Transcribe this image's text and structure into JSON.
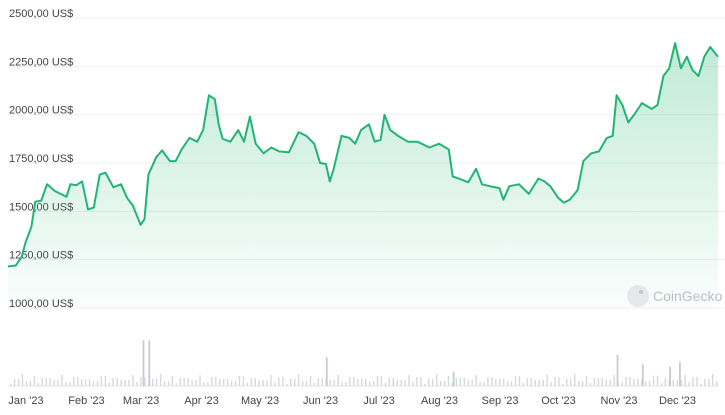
{
  "chart_data": {
    "type": "area",
    "title": "",
    "xlabel": "",
    "ylabel": "",
    "ylim": [
      1000,
      2500
    ],
    "x_range": [
      "2023-01-01",
      "2023-12-31"
    ],
    "y_ticks": [
      {
        "value": 2500,
        "label": "2500,00 US$"
      },
      {
        "value": 2250,
        "label": "2250,00 US$"
      },
      {
        "value": 2000,
        "label": "2000,00 US$"
      },
      {
        "value": 1750,
        "label": "1750,00 US$"
      },
      {
        "value": 1500,
        "label": "1500,00 US$"
      },
      {
        "value": 1250,
        "label": "1250,00 US$"
      },
      {
        "value": 1000,
        "label": "1000,00 US$"
      }
    ],
    "x_ticks": [
      {
        "date": "2023-01-01",
        "label": "Jan '23"
      },
      {
        "date": "2023-02-01",
        "label": "Feb '23"
      },
      {
        "date": "2023-03-01",
        "label": "Mar '23"
      },
      {
        "date": "2023-04-01",
        "label": "Apr '23"
      },
      {
        "date": "2023-05-01",
        "label": "May '23"
      },
      {
        "date": "2023-06-01",
        "label": "Jun '23"
      },
      {
        "date": "2023-07-01",
        "label": "Jul '23"
      },
      {
        "date": "2023-08-01",
        "label": "Aug '23"
      },
      {
        "date": "2023-09-01",
        "label": "Sep '23"
      },
      {
        "date": "2023-10-01",
        "label": "Oct '23"
      },
      {
        "date": "2023-11-01",
        "label": "Nov '23"
      },
      {
        "date": "2023-12-01",
        "label": "Dec '23"
      }
    ],
    "grid": true,
    "colors": {
      "line": "#21b573",
      "fill": "#21b573",
      "volume": "#d4d8df",
      "grid": "#eef0f3"
    },
    "series": [
      {
        "values": [
          [
            "2023-01-01",
            1215
          ],
          [
            "2023-01-05",
            1220
          ],
          [
            "2023-01-08",
            1265
          ],
          [
            "2023-01-10",
            1340
          ],
          [
            "2023-01-13",
            1420
          ],
          [
            "2023-01-15",
            1550
          ],
          [
            "2023-01-18",
            1555
          ],
          [
            "2023-01-21",
            1640
          ],
          [
            "2023-01-25",
            1605
          ],
          [
            "2023-01-28",
            1590
          ],
          [
            "2023-01-31",
            1575
          ],
          [
            "2023-02-02",
            1640
          ],
          [
            "2023-02-05",
            1635
          ],
          [
            "2023-02-08",
            1655
          ],
          [
            "2023-02-11",
            1510
          ],
          [
            "2023-02-14",
            1520
          ],
          [
            "2023-02-17",
            1690
          ],
          [
            "2023-02-20",
            1700
          ],
          [
            "2023-02-24",
            1625
          ],
          [
            "2023-02-28",
            1640
          ],
          [
            "2023-03-03",
            1570
          ],
          [
            "2023-03-06",
            1530
          ],
          [
            "2023-03-10",
            1430
          ],
          [
            "2023-03-12",
            1460
          ],
          [
            "2023-03-14",
            1690
          ],
          [
            "2023-03-18",
            1780
          ],
          [
            "2023-03-21",
            1815
          ],
          [
            "2023-03-25",
            1760
          ],
          [
            "2023-03-28",
            1760
          ],
          [
            "2023-03-31",
            1820
          ],
          [
            "2023-04-04",
            1880
          ],
          [
            "2023-04-08",
            1860
          ],
          [
            "2023-04-11",
            1920
          ],
          [
            "2023-04-14",
            2100
          ],
          [
            "2023-04-17",
            2080
          ],
          [
            "2023-04-19",
            1950
          ],
          [
            "2023-04-21",
            1875
          ],
          [
            "2023-04-25",
            1860
          ],
          [
            "2023-04-29",
            1920
          ],
          [
            "2023-05-02",
            1860
          ],
          [
            "2023-05-05",
            1990
          ],
          [
            "2023-05-08",
            1850
          ],
          [
            "2023-05-12",
            1800
          ],
          [
            "2023-05-16",
            1830
          ],
          [
            "2023-05-20",
            1810
          ],
          [
            "2023-05-25",
            1805
          ],
          [
            "2023-05-30",
            1910
          ],
          [
            "2023-06-03",
            1890
          ],
          [
            "2023-06-07",
            1850
          ],
          [
            "2023-06-10",
            1750
          ],
          [
            "2023-06-13",
            1745
          ],
          [
            "2023-06-15",
            1655
          ],
          [
            "2023-06-17",
            1720
          ],
          [
            "2023-06-21",
            1890
          ],
          [
            "2023-06-25",
            1880
          ],
          [
            "2023-06-28",
            1850
          ],
          [
            "2023-07-01",
            1920
          ],
          [
            "2023-07-05",
            1950
          ],
          [
            "2023-07-08",
            1860
          ],
          [
            "2023-07-11",
            1870
          ],
          [
            "2023-07-13",
            2000
          ],
          [
            "2023-07-16",
            1920
          ],
          [
            "2023-07-20",
            1890
          ],
          [
            "2023-07-25",
            1860
          ],
          [
            "2023-07-30",
            1860
          ],
          [
            "2023-08-05",
            1830
          ],
          [
            "2023-08-10",
            1850
          ],
          [
            "2023-08-15",
            1820
          ],
          [
            "2023-08-17",
            1680
          ],
          [
            "2023-08-20",
            1670
          ],
          [
            "2023-08-25",
            1650
          ],
          [
            "2023-08-29",
            1720
          ],
          [
            "2023-09-01",
            1640
          ],
          [
            "2023-09-05",
            1630
          ],
          [
            "2023-09-10",
            1620
          ],
          [
            "2023-09-12",
            1560
          ],
          [
            "2023-09-15",
            1630
          ],
          [
            "2023-09-20",
            1640
          ],
          [
            "2023-09-25",
            1590
          ],
          [
            "2023-09-30",
            1670
          ],
          [
            "2023-10-03",
            1655
          ],
          [
            "2023-10-06",
            1630
          ],
          [
            "2023-10-10",
            1570
          ],
          [
            "2023-10-13",
            1545
          ],
          [
            "2023-10-16",
            1560
          ],
          [
            "2023-10-20",
            1610
          ],
          [
            "2023-10-23",
            1760
          ],
          [
            "2023-10-27",
            1800
          ],
          [
            "2023-10-31",
            1810
          ],
          [
            "2023-11-04",
            1880
          ],
          [
            "2023-11-07",
            1890
          ],
          [
            "2023-11-09",
            2100
          ],
          [
            "2023-11-12",
            2050
          ],
          [
            "2023-11-15",
            1960
          ],
          [
            "2023-11-18",
            2000
          ],
          [
            "2023-11-22",
            2060
          ],
          [
            "2023-11-27",
            2030
          ],
          [
            "2023-11-30",
            2050
          ],
          [
            "2023-12-03",
            2200
          ],
          [
            "2023-12-06",
            2240
          ],
          [
            "2023-12-09",
            2370
          ],
          [
            "2023-12-12",
            2240
          ],
          [
            "2023-12-15",
            2300
          ],
          [
            "2023-12-18",
            2230
          ],
          [
            "2023-12-21",
            2200
          ],
          [
            "2023-12-24",
            2300
          ],
          [
            "2023-12-27",
            2350
          ],
          [
            "2023-12-31",
            2300
          ]
        ]
      }
    ],
    "volume": [
      {
        "date": "2023-03-11",
        "value": 0.95
      },
      {
        "date": "2023-03-14",
        "value": 0.95
      },
      {
        "date": "2023-06-13",
        "value": 0.6
      },
      {
        "date": "2023-08-17",
        "value": 0.3
      },
      {
        "date": "2023-11-09",
        "value": 0.65
      },
      {
        "date": "2023-11-22",
        "value": 0.45
      },
      {
        "date": "2023-12-06",
        "value": 0.4
      },
      {
        "date": "2023-12-11",
        "value": 0.5
      }
    ],
    "watermark": {
      "text": "CoinGecko",
      "icon": "gecko-icon"
    }
  }
}
